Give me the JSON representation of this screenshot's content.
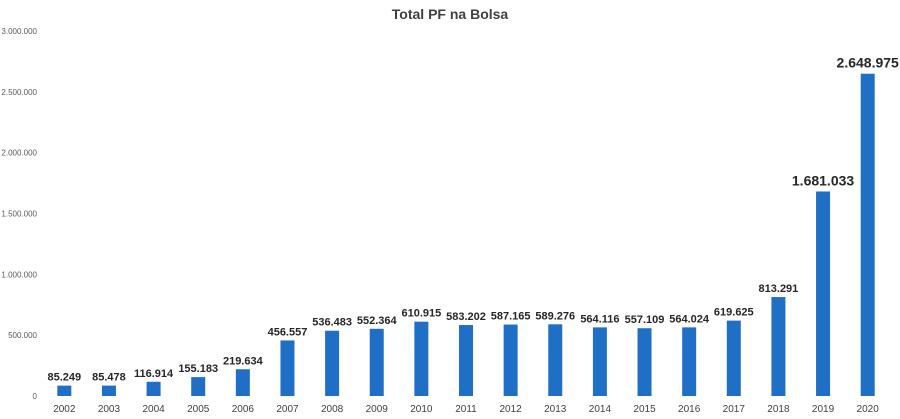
{
  "chart_data": {
    "type": "bar",
    "title": "Total PF na Bolsa",
    "xlabel": "",
    "ylabel": "",
    "ylim": [
      0,
      3000000
    ],
    "yticks": [
      0,
      500000,
      1000000,
      1500000,
      2000000,
      2500000,
      3000000
    ],
    "ytick_labels": [
      "0",
      "500.000",
      "1.000.000",
      "1.500.000",
      "2.000.000",
      "2.500.000",
      "3.000.000"
    ],
    "grid": false,
    "legend": "none",
    "bar_color": "#1f6fc6",
    "categories": [
      "2002",
      "2003",
      "2004",
      "2005",
      "2006",
      "2007",
      "2008",
      "2009",
      "2010",
      "2011",
      "2012",
      "2013",
      "2014",
      "2015",
      "2016",
      "2017",
      "2018",
      "2019",
      "2020"
    ],
    "values": [
      85249,
      85478,
      116914,
      155183,
      219634,
      456557,
      536483,
      552364,
      610915,
      583202,
      587165,
      589276,
      564116,
      557109,
      564024,
      619625,
      813291,
      1681033,
      2648975
    ],
    "value_labels": [
      "85.249",
      "85.478",
      "116.914",
      "155.183",
      "219.634",
      "456.557",
      "536.483",
      "552.364",
      "610.915",
      "583.202",
      "587.165",
      "589.276",
      "564.116",
      "557.109",
      "564.024",
      "619.625",
      "813.291",
      "1.681.033",
      "2.648.975"
    ]
  }
}
